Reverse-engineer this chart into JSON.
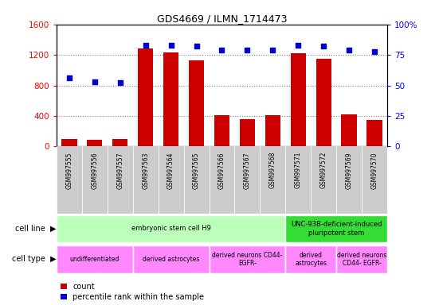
{
  "title": "GDS4669 / ILMN_1714473",
  "samples": [
    "GSM997555",
    "GSM997556",
    "GSM997557",
    "GSM997563",
    "GSM997564",
    "GSM997565",
    "GSM997566",
    "GSM997567",
    "GSM997568",
    "GSM997571",
    "GSM997572",
    "GSM997569",
    "GSM997570"
  ],
  "counts": [
    100,
    90,
    100,
    1280,
    1230,
    1130,
    410,
    360,
    410,
    1220,
    1150,
    420,
    350
  ],
  "percentiles": [
    56,
    53,
    52,
    83,
    83,
    82,
    79,
    79,
    79,
    83,
    82,
    79,
    78
  ],
  "bar_color": "#cc0000",
  "dot_color": "#0000cc",
  "ylim_left": [
    0,
    1600
  ],
  "ylim_right": [
    0,
    100
  ],
  "yticks_left": [
    0,
    400,
    800,
    1200,
    1600
  ],
  "yticks_right": [
    0,
    25,
    50,
    75,
    100
  ],
  "cell_line_groups": [
    {
      "label": "embryonic stem cell H9",
      "start": 0,
      "end": 9,
      "color": "#bbffbb"
    },
    {
      "label": "UNC-93B-deficient-induced\npluripotent stem",
      "start": 9,
      "end": 13,
      "color": "#33dd33"
    }
  ],
  "cell_type_groups": [
    {
      "label": "undifferentiated",
      "start": 0,
      "end": 3,
      "color": "#ff88ff"
    },
    {
      "label": "derived astrocytes",
      "start": 3,
      "end": 6,
      "color": "#ff88ff"
    },
    {
      "label": "derived neurons CD44-\nEGFR-",
      "start": 6,
      "end": 9,
      "color": "#ff88ff"
    },
    {
      "label": "derived\nastrocytes",
      "start": 9,
      "end": 11,
      "color": "#ff88ff"
    },
    {
      "label": "derived neurons\nCD44- EGFR-",
      "start": 11,
      "end": 13,
      "color": "#ff88ff"
    }
  ],
  "legend_count_label": "count",
  "legend_pct_label": "percentile rank within the sample",
  "tick_bg_color": "#cccccc"
}
